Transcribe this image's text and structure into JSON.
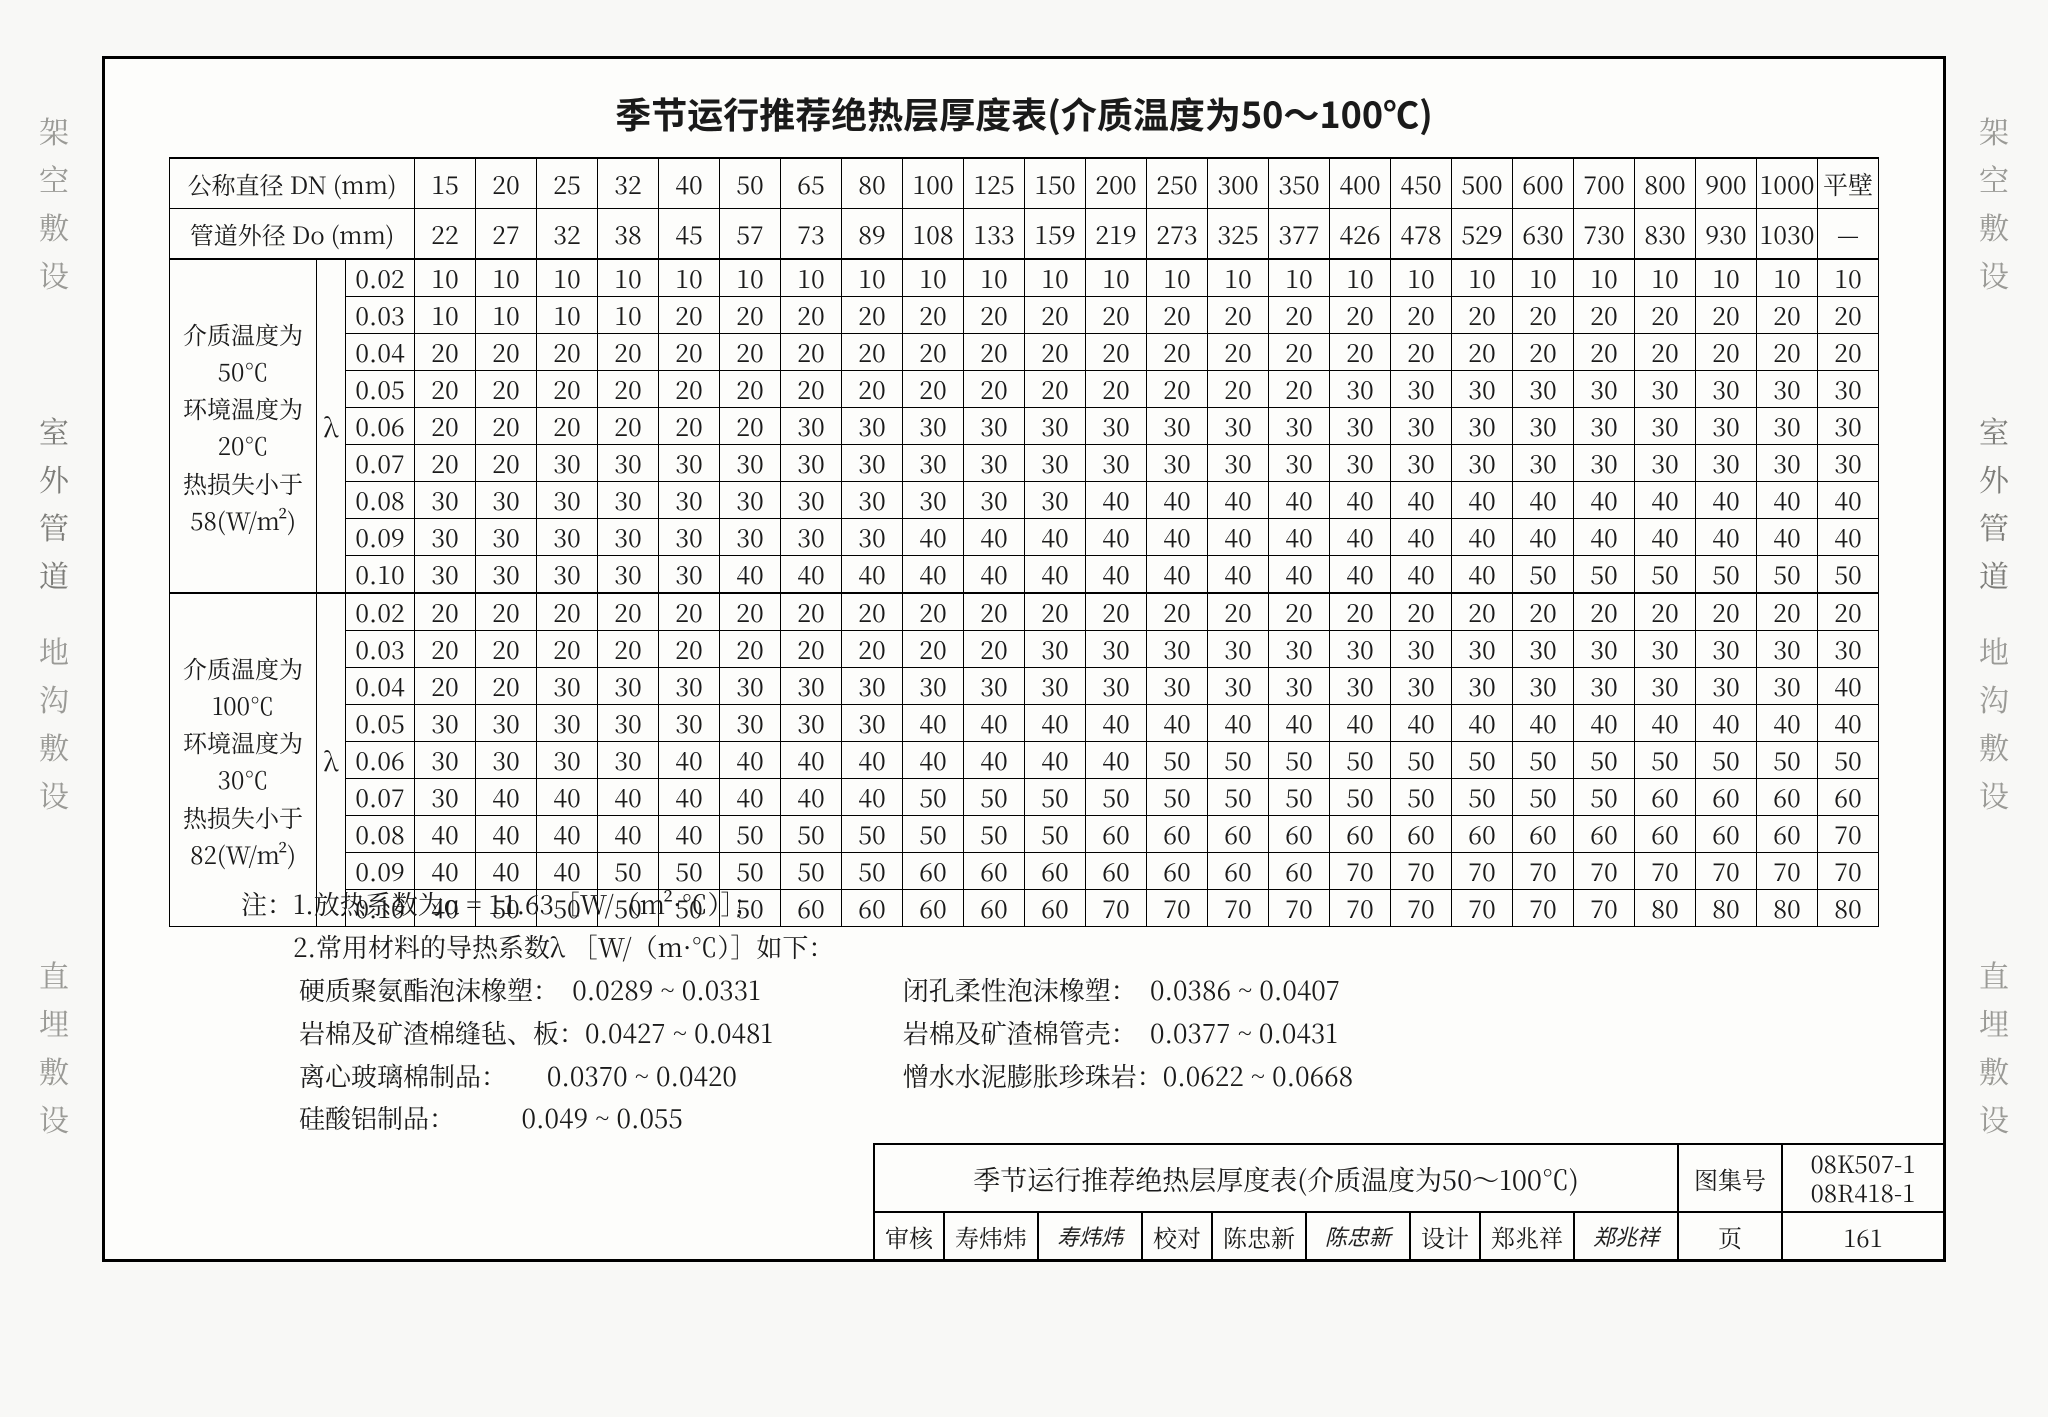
{
  "title": "季节运行推荐绝热层厚度表(介质温度为50～100℃)",
  "header1_label": "公称直径 DN (mm)",
  "header2_label": "管道外径 Do (mm)",
  "dn": [
    "15",
    "20",
    "25",
    "32",
    "40",
    "50",
    "65",
    "80",
    "100",
    "125",
    "150",
    "200",
    "250",
    "300",
    "350",
    "400",
    "450",
    "500",
    "600",
    "700",
    "800",
    "900",
    "1000",
    "平壁"
  ],
  "do_": [
    "22",
    "27",
    "32",
    "38",
    "45",
    "57",
    "73",
    "89",
    "108",
    "133",
    "159",
    "219",
    "273",
    "325",
    "377",
    "426",
    "478",
    "529",
    "630",
    "730",
    "830",
    "930",
    "1030",
    "—"
  ],
  "lambda_symbol": "λ",
  "blocks": [
    {
      "desc": [
        "介质温度为",
        "50℃",
        "环境温度为",
        "20℃",
        "热损失小于",
        "58(W/m²)"
      ],
      "lambdas": [
        "0.02",
        "0.03",
        "0.04",
        "0.05",
        "0.06",
        "0.07",
        "0.08",
        "0.09",
        "0.10"
      ],
      "rows": [
        [
          "10",
          "10",
          "10",
          "10",
          "10",
          "10",
          "10",
          "10",
          "10",
          "10",
          "10",
          "10",
          "10",
          "10",
          "10",
          "10",
          "10",
          "10",
          "10",
          "10",
          "10",
          "10",
          "10",
          "10"
        ],
        [
          "10",
          "10",
          "10",
          "10",
          "20",
          "20",
          "20",
          "20",
          "20",
          "20",
          "20",
          "20",
          "20",
          "20",
          "20",
          "20",
          "20",
          "20",
          "20",
          "20",
          "20",
          "20",
          "20",
          "20"
        ],
        [
          "20",
          "20",
          "20",
          "20",
          "20",
          "20",
          "20",
          "20",
          "20",
          "20",
          "20",
          "20",
          "20",
          "20",
          "20",
          "20",
          "20",
          "20",
          "20",
          "20",
          "20",
          "20",
          "20",
          "20"
        ],
        [
          "20",
          "20",
          "20",
          "20",
          "20",
          "20",
          "20",
          "20",
          "20",
          "20",
          "20",
          "20",
          "20",
          "20",
          "20",
          "30",
          "30",
          "30",
          "30",
          "30",
          "30",
          "30",
          "30",
          "30"
        ],
        [
          "20",
          "20",
          "20",
          "20",
          "20",
          "20",
          "30",
          "30",
          "30",
          "30",
          "30",
          "30",
          "30",
          "30",
          "30",
          "30",
          "30",
          "30",
          "30",
          "30",
          "30",
          "30",
          "30",
          "30"
        ],
        [
          "20",
          "20",
          "30",
          "30",
          "30",
          "30",
          "30",
          "30",
          "30",
          "30",
          "30",
          "30",
          "30",
          "30",
          "30",
          "30",
          "30",
          "30",
          "30",
          "30",
          "30",
          "30",
          "30",
          "30"
        ],
        [
          "30",
          "30",
          "30",
          "30",
          "30",
          "30",
          "30",
          "30",
          "30",
          "30",
          "30",
          "40",
          "40",
          "40",
          "40",
          "40",
          "40",
          "40",
          "40",
          "40",
          "40",
          "40",
          "40",
          "40"
        ],
        [
          "30",
          "30",
          "30",
          "30",
          "30",
          "30",
          "30",
          "30",
          "40",
          "40",
          "40",
          "40",
          "40",
          "40",
          "40",
          "40",
          "40",
          "40",
          "40",
          "40",
          "40",
          "40",
          "40",
          "40"
        ],
        [
          "30",
          "30",
          "30",
          "30",
          "30",
          "40",
          "40",
          "40",
          "40",
          "40",
          "40",
          "40",
          "40",
          "40",
          "40",
          "40",
          "40",
          "40",
          "50",
          "50",
          "50",
          "50",
          "50",
          "50"
        ]
      ]
    },
    {
      "desc": [
        "介质温度为",
        "100℃",
        "环境温度为",
        "30℃",
        "热损失小于",
        "82(W/m²)"
      ],
      "lambdas": [
        "0.02",
        "0.03",
        "0.04",
        "0.05",
        "0.06",
        "0.07",
        "0.08",
        "0.09",
        "0.10"
      ],
      "rows": [
        [
          "20",
          "20",
          "20",
          "20",
          "20",
          "20",
          "20",
          "20",
          "20",
          "20",
          "20",
          "20",
          "20",
          "20",
          "20",
          "20",
          "20",
          "20",
          "20",
          "20",
          "20",
          "20",
          "20",
          "20"
        ],
        [
          "20",
          "20",
          "20",
          "20",
          "20",
          "20",
          "20",
          "20",
          "20",
          "20",
          "30",
          "30",
          "30",
          "30",
          "30",
          "30",
          "30",
          "30",
          "30",
          "30",
          "30",
          "30",
          "30",
          "30"
        ],
        [
          "20",
          "20",
          "30",
          "30",
          "30",
          "30",
          "30",
          "30",
          "30",
          "30",
          "30",
          "30",
          "30",
          "30",
          "30",
          "30",
          "30",
          "30",
          "30",
          "30",
          "30",
          "30",
          "30",
          "40"
        ],
        [
          "30",
          "30",
          "30",
          "30",
          "30",
          "30",
          "30",
          "30",
          "40",
          "40",
          "40",
          "40",
          "40",
          "40",
          "40",
          "40",
          "40",
          "40",
          "40",
          "40",
          "40",
          "40",
          "40",
          "40"
        ],
        [
          "30",
          "30",
          "30",
          "30",
          "40",
          "40",
          "40",
          "40",
          "40",
          "40",
          "40",
          "40",
          "50",
          "50",
          "50",
          "50",
          "50",
          "50",
          "50",
          "50",
          "50",
          "50",
          "50",
          "50"
        ],
        [
          "30",
          "40",
          "40",
          "40",
          "40",
          "40",
          "40",
          "40",
          "50",
          "50",
          "50",
          "50",
          "50",
          "50",
          "50",
          "50",
          "50",
          "50",
          "50",
          "50",
          "60",
          "60",
          "60",
          "60"
        ],
        [
          "40",
          "40",
          "40",
          "40",
          "40",
          "50",
          "50",
          "50",
          "50",
          "50",
          "50",
          "60",
          "60",
          "60",
          "60",
          "60",
          "60",
          "60",
          "60",
          "60",
          "60",
          "60",
          "60",
          "70"
        ],
        [
          "40",
          "40",
          "40",
          "50",
          "50",
          "50",
          "50",
          "50",
          "60",
          "60",
          "60",
          "60",
          "60",
          "60",
          "60",
          "70",
          "70",
          "70",
          "70",
          "70",
          "70",
          "70",
          "70",
          "70"
        ],
        [
          "40",
          "50",
          "50",
          "50",
          "50",
          "50",
          "60",
          "60",
          "60",
          "60",
          "60",
          "70",
          "70",
          "70",
          "70",
          "70",
          "70",
          "70",
          "70",
          "70",
          "80",
          "80",
          "80",
          "80"
        ]
      ]
    }
  ],
  "notes": {
    "line1": "注：1.放热系数为α = 11.63［W/（m²·℃）］；",
    "line2": "　　2.常用材料的导热系数λ ［W/（m·℃）］如下：",
    "left": [
      "硬质聚氨酯泡沫橡塑：  0.0289 ~ 0.0331",
      "岩棉及矿渣棉缝毡、板：0.0427 ~ 0.0481",
      "离心玻璃棉制品：      0.0370 ~ 0.0420",
      "硅酸铝制品：          0.049 ~ 0.055"
    ],
    "right": [
      "闭孔柔性泡沫橡塑：  0.0386 ~ 0.0407",
      "岩棉及矿渣棉管壳：  0.0377 ~ 0.0431",
      "憎水水泥膨胀珍珠岩：0.0622 ~ 0.0668"
    ]
  },
  "titleblock": {
    "name": "季节运行推荐绝热层厚度表(介质温度为50～100℃)",
    "atlas_label": "图集号",
    "atlas_no": "08K507-1\n08R418-1",
    "review_label": "审核",
    "review_name": "寿炜炜",
    "review_sig": "寿炜炜",
    "check_label": "校对",
    "check_name": "陈忠新",
    "check_sig": "陈忠新",
    "design_label": "设计",
    "design_name": "郑兆祥",
    "design_sig": "郑兆祥",
    "page_label": "页",
    "page_no": "161"
  },
  "side_labels": {
    "left_top": "架空敷设",
    "right_top": "架空敷设",
    "left_mid_outdoor": "室外管道",
    "right_mid_outdoor": "室外管道",
    "left_mid": "地沟敷设",
    "right_mid": "地沟敷设",
    "left_bot": "直埋敷设",
    "right_bot": "直埋敷设"
  },
  "colors": {
    "border": "#000000",
    "bg": "#f8f8f6",
    "side": "#9a9a96"
  }
}
